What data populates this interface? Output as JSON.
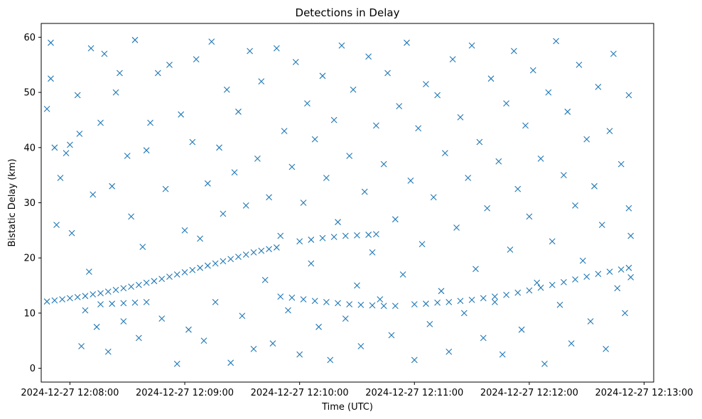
{
  "chart_data": {
    "type": "scatter",
    "title": "Detections in Delay",
    "xlabel": "Time (UTC)",
    "ylabel": "Bistatic Delay (km)",
    "x_scale": "time",
    "xlim": [
      "2024-12-27 12:07:45",
      "2024-12-27 12:13:05"
    ],
    "ylim": [
      -2.5,
      62.5
    ],
    "x_ticks": [
      "2024-12-27 12:08:00",
      "2024-12-27 12:09:00",
      "2024-12-27 12:10:00",
      "2024-12-27 12:11:00",
      "2024-12-27 12:12:00",
      "2024-12-27 12:13:00"
    ],
    "x_tick_labels": [
      "2024-12-27 12:08:00",
      "2024-12-27 12:09:00",
      "2024-12-27 12:10:00",
      "2024-12-27 12:11:00",
      "2024-12-27 12:12:00",
      "2024-12-27 12:13:00"
    ],
    "y_ticks": [
      0,
      10,
      20,
      30,
      40,
      50,
      60
    ],
    "y_tick_labels": [
      "0",
      "10",
      "20",
      "30",
      "40",
      "50",
      "60"
    ],
    "grid": false,
    "legend": "none",
    "marker": "x",
    "color": "#1f77b4",
    "series": [
      {
        "values": [
          [
            "2024-12-27 12:07:48",
            12.1
          ],
          [
            "2024-12-27 12:07:52",
            12.3
          ],
          [
            "2024-12-27 12:07:56",
            12.5
          ],
          [
            "2024-12-27 12:08:00",
            12.7
          ],
          [
            "2024-12-27 12:08:04",
            12.9
          ],
          [
            "2024-12-27 12:08:08",
            13.1
          ],
          [
            "2024-12-27 12:08:12",
            13.4
          ],
          [
            "2024-12-27 12:08:16",
            13.6
          ],
          [
            "2024-12-27 12:08:20",
            13.9
          ],
          [
            "2024-12-27 12:08:24",
            14.2
          ],
          [
            "2024-12-27 12:08:28",
            14.5
          ],
          [
            "2024-12-27 12:08:32",
            14.8
          ],
          [
            "2024-12-27 12:08:36",
            15.1
          ],
          [
            "2024-12-27 12:08:40",
            15.5
          ],
          [
            "2024-12-27 12:08:44",
            15.8
          ],
          [
            "2024-12-27 12:08:48",
            16.2
          ],
          [
            "2024-12-27 12:08:52",
            16.6
          ],
          [
            "2024-12-27 12:08:56",
            17.0
          ],
          [
            "2024-12-27 12:09:00",
            17.4
          ],
          [
            "2024-12-27 12:09:04",
            17.8
          ],
          [
            "2024-12-27 12:09:08",
            18.2
          ],
          [
            "2024-12-27 12:09:12",
            18.6
          ],
          [
            "2024-12-27 12:09:16",
            19.0
          ],
          [
            "2024-12-27 12:09:20",
            19.4
          ],
          [
            "2024-12-27 12:09:24",
            19.8
          ],
          [
            "2024-12-27 12:09:28",
            20.2
          ],
          [
            "2024-12-27 12:09:32",
            20.6
          ],
          [
            "2024-12-27 12:09:36",
            21.0
          ],
          [
            "2024-12-27 12:09:40",
            21.3
          ],
          [
            "2024-12-27 12:09:44",
            21.6
          ],
          [
            "2024-12-27 12:09:48",
            21.9
          ],
          [
            "2024-12-27 12:10:00",
            23.0
          ],
          [
            "2024-12-27 12:10:06",
            23.3
          ],
          [
            "2024-12-27 12:10:12",
            23.6
          ],
          [
            "2024-12-27 12:10:18",
            23.8
          ],
          [
            "2024-12-27 12:10:24",
            24.0
          ],
          [
            "2024-12-27 12:10:30",
            24.1
          ],
          [
            "2024-12-27 12:10:36",
            24.2
          ],
          [
            "2024-12-27 12:10:40",
            24.3
          ],
          [
            "2024-12-27 12:08:16",
            11.6
          ],
          [
            "2024-12-27 12:08:22",
            11.7
          ],
          [
            "2024-12-27 12:08:28",
            11.8
          ],
          [
            "2024-12-27 12:08:34",
            11.9
          ],
          [
            "2024-12-27 12:08:40",
            12.0
          ],
          [
            "2024-12-27 12:09:50",
            13.0
          ],
          [
            "2024-12-27 12:09:56",
            12.8
          ],
          [
            "2024-12-27 12:10:02",
            12.5
          ],
          [
            "2024-12-27 12:10:08",
            12.2
          ],
          [
            "2024-12-27 12:10:14",
            12.0
          ],
          [
            "2024-12-27 12:10:20",
            11.8
          ],
          [
            "2024-12-27 12:10:26",
            11.6
          ],
          [
            "2024-12-27 12:10:32",
            11.5
          ],
          [
            "2024-12-27 12:10:38",
            11.4
          ],
          [
            "2024-12-27 12:10:44",
            11.3
          ],
          [
            "2024-12-27 12:10:50",
            11.3
          ],
          [
            "2024-12-27 12:11:00",
            11.6
          ],
          [
            "2024-12-27 12:11:06",
            11.7
          ],
          [
            "2024-12-27 12:11:12",
            11.9
          ],
          [
            "2024-12-27 12:11:18",
            12.0
          ],
          [
            "2024-12-27 12:11:24",
            12.2
          ],
          [
            "2024-12-27 12:11:30",
            12.4
          ],
          [
            "2024-12-27 12:11:36",
            12.7
          ],
          [
            "2024-12-27 12:11:42",
            13.0
          ],
          [
            "2024-12-27 12:11:48",
            13.3
          ],
          [
            "2024-12-27 12:11:54",
            13.7
          ],
          [
            "2024-12-27 12:12:00",
            14.1
          ],
          [
            "2024-12-27 12:12:06",
            14.6
          ],
          [
            "2024-12-27 12:12:12",
            15.1
          ],
          [
            "2024-12-27 12:12:18",
            15.6
          ],
          [
            "2024-12-27 12:12:24",
            16.1
          ],
          [
            "2024-12-27 12:12:30",
            16.6
          ],
          [
            "2024-12-27 12:12:36",
            17.1
          ],
          [
            "2024-12-27 12:12:42",
            17.5
          ],
          [
            "2024-12-27 12:12:48",
            17.9
          ],
          [
            "2024-12-27 12:12:52",
            18.2
          ],
          [
            "2024-12-27 12:07:48",
            47.0
          ],
          [
            "2024-12-27 12:07:50",
            59.0
          ],
          [
            "2024-12-27 12:07:50",
            52.5
          ],
          [
            "2024-12-27 12:07:52",
            40.0
          ],
          [
            "2024-12-27 12:07:53",
            26.0
          ],
          [
            "2024-12-27 12:07:55",
            34.5
          ],
          [
            "2024-12-27 12:07:58",
            39.0
          ],
          [
            "2024-12-27 12:08:00",
            40.5
          ],
          [
            "2024-12-27 12:08:01",
            24.5
          ],
          [
            "2024-12-27 12:08:04",
            49.5
          ],
          [
            "2024-12-27 12:08:05",
            42.5
          ],
          [
            "2024-12-27 12:08:06",
            4.0
          ],
          [
            "2024-12-27 12:08:08",
            10.5
          ],
          [
            "2024-12-27 12:08:10",
            17.5
          ],
          [
            "2024-12-27 12:08:11",
            58.0
          ],
          [
            "2024-12-27 12:08:12",
            31.5
          ],
          [
            "2024-12-27 12:08:14",
            7.5
          ],
          [
            "2024-12-27 12:08:16",
            44.5
          ],
          [
            "2024-12-27 12:08:18",
            57.0
          ],
          [
            "2024-12-27 12:08:20",
            3.0
          ],
          [
            "2024-12-27 12:08:22",
            33.0
          ],
          [
            "2024-12-27 12:08:24",
            50.0
          ],
          [
            "2024-12-27 12:08:26",
            53.5
          ],
          [
            "2024-12-27 12:08:28",
            8.5
          ],
          [
            "2024-12-27 12:08:30",
            38.5
          ],
          [
            "2024-12-27 12:08:32",
            27.5
          ],
          [
            "2024-12-27 12:08:34",
            59.5
          ],
          [
            "2024-12-27 12:08:36",
            5.5
          ],
          [
            "2024-12-27 12:08:38",
            22.0
          ],
          [
            "2024-12-27 12:08:40",
            39.5
          ],
          [
            "2024-12-27 12:08:42",
            44.5
          ],
          [
            "2024-12-27 12:08:46",
            53.5
          ],
          [
            "2024-12-27 12:08:48",
            9.0
          ],
          [
            "2024-12-27 12:08:50",
            32.5
          ],
          [
            "2024-12-27 12:08:52",
            55.0
          ],
          [
            "2024-12-27 12:08:56",
            0.8
          ],
          [
            "2024-12-27 12:08:58",
            46.0
          ],
          [
            "2024-12-27 12:09:00",
            25.0
          ],
          [
            "2024-12-27 12:09:02",
            7.0
          ],
          [
            "2024-12-27 12:09:04",
            41.0
          ],
          [
            "2024-12-27 12:09:06",
            56.0
          ],
          [
            "2024-12-27 12:09:08",
            23.5
          ],
          [
            "2024-12-27 12:09:10",
            5.0
          ],
          [
            "2024-12-27 12:09:12",
            33.5
          ],
          [
            "2024-12-27 12:09:14",
            59.2
          ],
          [
            "2024-12-27 12:09:16",
            12.0
          ],
          [
            "2024-12-27 12:09:18",
            40.0
          ],
          [
            "2024-12-27 12:09:20",
            28.0
          ],
          [
            "2024-12-27 12:09:22",
            50.5
          ],
          [
            "2024-12-27 12:09:24",
            1.0
          ],
          [
            "2024-12-27 12:09:26",
            35.5
          ],
          [
            "2024-12-27 12:09:28",
            46.5
          ],
          [
            "2024-12-27 12:09:30",
            9.5
          ],
          [
            "2024-12-27 12:09:32",
            29.5
          ],
          [
            "2024-12-27 12:09:34",
            57.5
          ],
          [
            "2024-12-27 12:09:36",
            3.5
          ],
          [
            "2024-12-27 12:09:38",
            38.0
          ],
          [
            "2024-12-27 12:09:40",
            52.0
          ],
          [
            "2024-12-27 12:09:42",
            16.0
          ],
          [
            "2024-12-27 12:09:44",
            31.0
          ],
          [
            "2024-12-27 12:09:46",
            4.5
          ],
          [
            "2024-12-27 12:09:48",
            58.0
          ],
          [
            "2024-12-27 12:09:50",
            24.0
          ],
          [
            "2024-12-27 12:09:52",
            43.0
          ],
          [
            "2024-12-27 12:09:54",
            10.5
          ],
          [
            "2024-12-27 12:09:56",
            36.5
          ],
          [
            "2024-12-27 12:09:58",
            55.5
          ],
          [
            "2024-12-27 12:10:00",
            2.5
          ],
          [
            "2024-12-27 12:10:02",
            30.0
          ],
          [
            "2024-12-27 12:10:04",
            48.0
          ],
          [
            "2024-12-27 12:10:06",
            19.0
          ],
          [
            "2024-12-27 12:10:08",
            41.5
          ],
          [
            "2024-12-27 12:10:10",
            7.5
          ],
          [
            "2024-12-27 12:10:12",
            53.0
          ],
          [
            "2024-12-27 12:10:14",
            34.5
          ],
          [
            "2024-12-27 12:10:16",
            1.5
          ],
          [
            "2024-12-27 12:10:18",
            45.0
          ],
          [
            "2024-12-27 12:10:20",
            26.5
          ],
          [
            "2024-12-27 12:10:22",
            58.5
          ],
          [
            "2024-12-27 12:10:24",
            9.0
          ],
          [
            "2024-12-27 12:10:26",
            38.5
          ],
          [
            "2024-12-27 12:10:28",
            50.5
          ],
          [
            "2024-12-27 12:10:30",
            15.0
          ],
          [
            "2024-12-27 12:10:32",
            4.0
          ],
          [
            "2024-12-27 12:10:34",
            32.0
          ],
          [
            "2024-12-27 12:10:36",
            56.5
          ],
          [
            "2024-12-27 12:10:38",
            21.0
          ],
          [
            "2024-12-27 12:10:40",
            44.0
          ],
          [
            "2024-12-27 12:10:42",
            12.5
          ],
          [
            "2024-12-27 12:10:44",
            37.0
          ],
          [
            "2024-12-27 12:10:46",
            53.5
          ],
          [
            "2024-12-27 12:10:48",
            6.0
          ],
          [
            "2024-12-27 12:10:50",
            27.0
          ],
          [
            "2024-12-27 12:10:52",
            47.5
          ],
          [
            "2024-12-27 12:10:54",
            17.0
          ],
          [
            "2024-12-27 12:10:56",
            59.0
          ],
          [
            "2024-12-27 12:10:58",
            34.0
          ],
          [
            "2024-12-27 12:11:00",
            1.5
          ],
          [
            "2024-12-27 12:11:02",
            43.5
          ],
          [
            "2024-12-27 12:11:04",
            22.5
          ],
          [
            "2024-12-27 12:11:06",
            51.5
          ],
          [
            "2024-12-27 12:11:08",
            8.0
          ],
          [
            "2024-12-27 12:11:10",
            31.0
          ],
          [
            "2024-12-27 12:11:12",
            49.5
          ],
          [
            "2024-12-27 12:11:14",
            14.0
          ],
          [
            "2024-12-27 12:11:16",
            39.0
          ],
          [
            "2024-12-27 12:11:18",
            3.0
          ],
          [
            "2024-12-27 12:11:20",
            56.0
          ],
          [
            "2024-12-27 12:11:22",
            25.5
          ],
          [
            "2024-12-27 12:11:24",
            45.5
          ],
          [
            "2024-12-27 12:11:26",
            10.0
          ],
          [
            "2024-12-27 12:11:28",
            34.5
          ],
          [
            "2024-12-27 12:11:30",
            58.5
          ],
          [
            "2024-12-27 12:11:32",
            18.0
          ],
          [
            "2024-12-27 12:11:34",
            41.0
          ],
          [
            "2024-12-27 12:11:36",
            5.5
          ],
          [
            "2024-12-27 12:11:38",
            29.0
          ],
          [
            "2024-12-27 12:11:40",
            52.5
          ],
          [
            "2024-12-27 12:11:42",
            12.0
          ],
          [
            "2024-12-27 12:11:44",
            37.5
          ],
          [
            "2024-12-27 12:11:46",
            2.5
          ],
          [
            "2024-12-27 12:11:48",
            48.0
          ],
          [
            "2024-12-27 12:11:50",
            21.5
          ],
          [
            "2024-12-27 12:11:52",
            57.5
          ],
          [
            "2024-12-27 12:11:54",
            32.5
          ],
          [
            "2024-12-27 12:11:56",
            7.0
          ],
          [
            "2024-12-27 12:11:58",
            44.0
          ],
          [
            "2024-12-27 12:12:00",
            27.5
          ],
          [
            "2024-12-27 12:12:02",
            54.0
          ],
          [
            "2024-12-27 12:12:04",
            15.5
          ],
          [
            "2024-12-27 12:12:06",
            38.0
          ],
          [
            "2024-12-27 12:12:08",
            0.8
          ],
          [
            "2024-12-27 12:12:10",
            50.0
          ],
          [
            "2024-12-27 12:12:12",
            23.0
          ],
          [
            "2024-12-27 12:12:14",
            59.3
          ],
          [
            "2024-12-27 12:12:16",
            11.5
          ],
          [
            "2024-12-27 12:12:18",
            35.0
          ],
          [
            "2024-12-27 12:12:20",
            46.5
          ],
          [
            "2024-12-27 12:12:22",
            4.5
          ],
          [
            "2024-12-27 12:12:24",
            29.5
          ],
          [
            "2024-12-27 12:12:26",
            55.0
          ],
          [
            "2024-12-27 12:12:28",
            19.5
          ],
          [
            "2024-12-27 12:12:30",
            41.5
          ],
          [
            "2024-12-27 12:12:32",
            8.5
          ],
          [
            "2024-12-27 12:12:34",
            33.0
          ],
          [
            "2024-12-27 12:12:36",
            51.0
          ],
          [
            "2024-12-27 12:12:38",
            26.0
          ],
          [
            "2024-12-27 12:12:40",
            3.5
          ],
          [
            "2024-12-27 12:12:42",
            43.0
          ],
          [
            "2024-12-27 12:12:44",
            57.0
          ],
          [
            "2024-12-27 12:12:46",
            14.5
          ],
          [
            "2024-12-27 12:12:48",
            37.0
          ],
          [
            "2024-12-27 12:12:50",
            10.0
          ],
          [
            "2024-12-27 12:12:52",
            49.5
          ],
          [
            "2024-12-27 12:12:53",
            24.0
          ],
          [
            "2024-12-27 12:12:53",
            16.5
          ],
          [
            "2024-12-27 12:12:52",
            29.0
          ]
        ]
      }
    ]
  }
}
